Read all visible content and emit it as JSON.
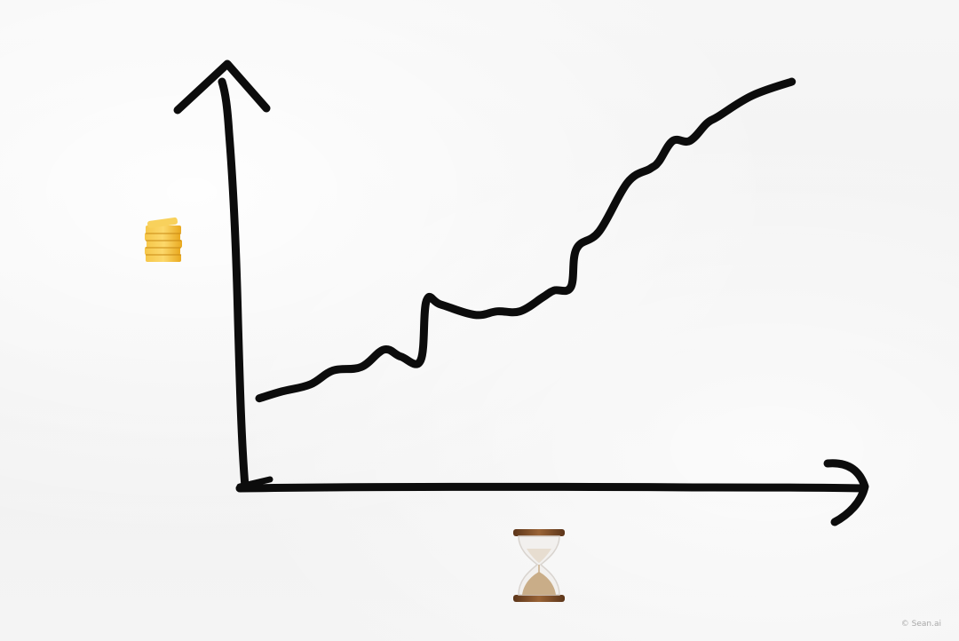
{
  "chart_data": {
    "type": "line",
    "title": "",
    "xlabel": "",
    "ylabel": "",
    "x_axis_icon": "hourglass-icon",
    "y_axis_icon": "coin-stack-icon",
    "xlim": [
      0,
      10
    ],
    "ylim": [
      0,
      10
    ],
    "grid": false,
    "x": [
      0.0,
      0.4,
      0.9,
      1.3,
      1.8,
      2.2,
      2.5,
      2.85,
      2.95,
      3.2,
      3.8,
      4.2,
      4.6,
      5.0,
      5.2,
      5.5,
      5.6,
      6.0,
      6.5,
      6.9,
      7.05,
      7.3,
      7.6,
      7.9,
      8.1,
      8.7,
      9.4
    ],
    "y": [
      0.9,
      1.1,
      1.3,
      1.7,
      1.8,
      2.3,
      2.1,
      2.0,
      3.7,
      3.6,
      3.3,
      3.4,
      3.4,
      3.8,
      4.0,
      4.1,
      5.2,
      5.7,
      7.1,
      7.5,
      7.7,
      8.3,
      8.3,
      8.8,
      9.0,
      9.6,
      10.0
    ],
    "colors": {
      "ink": "#0c0c0c",
      "coin": "#f3b62b",
      "hourglass_frame": "#7a4a26",
      "sand": "#c9ad88"
    }
  },
  "watermark": "© Sean.ai"
}
